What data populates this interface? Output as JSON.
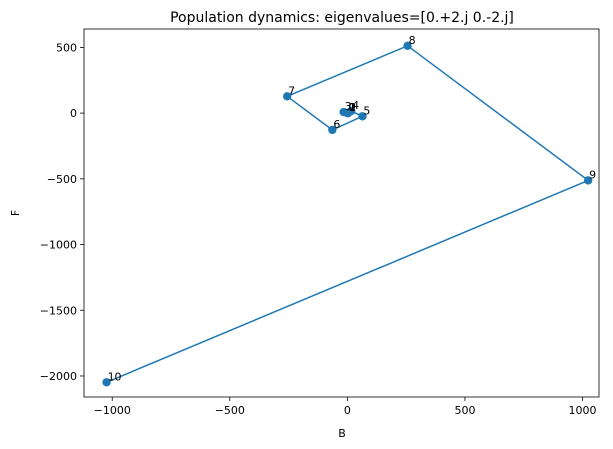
{
  "chart_data": {
    "type": "line",
    "title": "Population dynamics: eigenvalues=[0.+2.j 0.-2.j]",
    "xlabel": "B",
    "ylabel": "F",
    "xlim": [
      -1120,
      1070
    ],
    "ylim": [
      -2160,
      640
    ],
    "xticks": [
      -1000,
      -500,
      0,
      500,
      1000
    ],
    "xtick_labels": [
      "−1000",
      "−500",
      "0",
      "500",
      "1000"
    ],
    "yticks": [
      500,
      0,
      -500,
      -1000,
      -1500,
      -2000
    ],
    "ytick_labels": [
      "500",
      "0",
      "−500",
      "−1000",
      "−1500",
      "−2000"
    ],
    "grid": false,
    "series": [
      {
        "color": "#1f77b4",
        "points": [
          {
            "label": "0",
            "x": 1,
            "y": 0
          },
          {
            "label": "1",
            "x": 2,
            "y": 0
          },
          {
            "label": "2",
            "x": 4,
            "y": 2
          },
          {
            "label": "3",
            "x": -16,
            "y": 8
          },
          {
            "label": "4",
            "x": 16,
            "y": 16
          },
          {
            "label": "5",
            "x": 64,
            "y": -24
          },
          {
            "label": "6",
            "x": -64,
            "y": -128
          },
          {
            "label": "7",
            "x": -256,
            "y": 128
          },
          {
            "label": "8",
            "x": 256,
            "y": 512
          },
          {
            "label": "9",
            "x": 1024,
            "y": -512
          },
          {
            "label": "10",
            "x": -1024,
            "y": -2048
          }
        ]
      }
    ]
  }
}
